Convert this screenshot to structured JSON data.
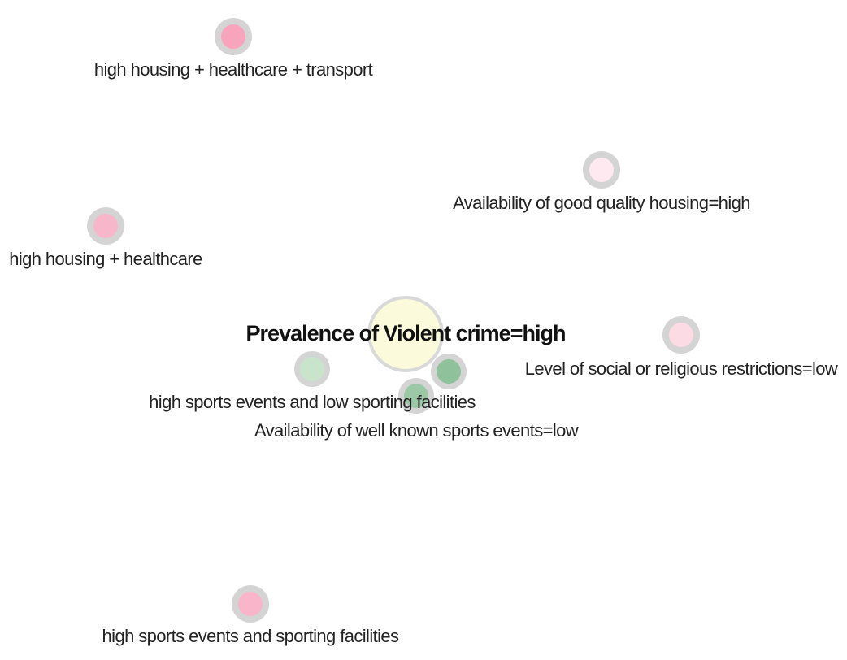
{
  "nodes": {
    "center": {
      "label": "Prevalence of Violent crime=high",
      "color": "#fbfbdc"
    },
    "housing_healthcare_transport": {
      "label": "high housing + healthcare + transport",
      "color": "#f7a4bc"
    },
    "housing_quality": {
      "label": "Availability of good quality housing=high",
      "color": "#fde9ef"
    },
    "housing_healthcare": {
      "label": "high housing + healthcare",
      "color": "#f7b6c9"
    },
    "social_restrictions": {
      "label": "Level of social or religious restrictions=low",
      "color": "#fcdbe4"
    },
    "sports_low_facilities": {
      "label": "high sports events and low sporting facilities",
      "color": "#c8e4cb"
    },
    "sports_events_low": {
      "label": "Availability of well known sports events=low",
      "color": "#9cc9a5"
    },
    "sports_small": {
      "color": "#8fc19a"
    },
    "sports_facilities": {
      "label": "high sports events and sporting facilities",
      "color": "#f9b6ca"
    }
  }
}
